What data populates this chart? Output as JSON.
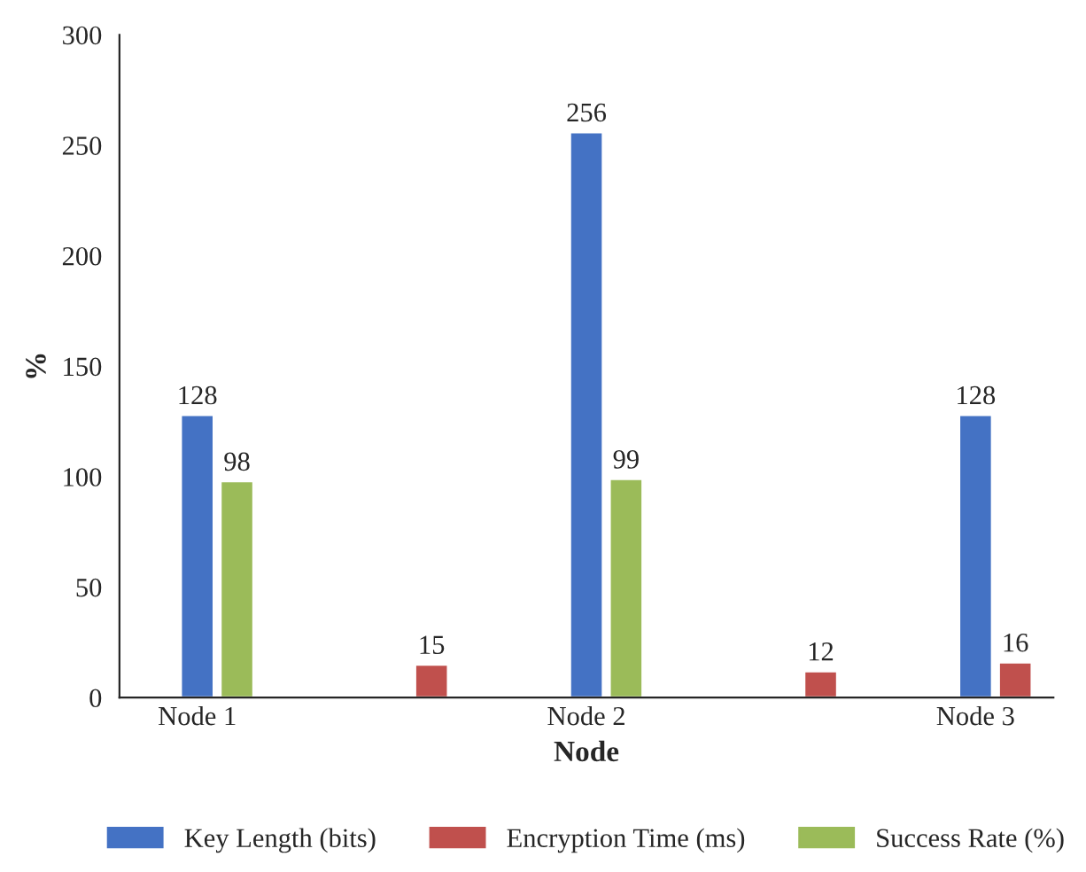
{
  "chart_data": {
    "type": "bar",
    "xlabel": "Node",
    "ylabel": "%",
    "categories": [
      "Node 1",
      null,
      "Node 2",
      null,
      "Node 3"
    ],
    "series": [
      {
        "name": "Key Length (bits)",
        "color": "#4472c4",
        "values": [
          128,
          null,
          256,
          null,
          128
        ]
      },
      {
        "name": "Encryption Time (ms)",
        "color": "#c0504d",
        "values": [
          null,
          15,
          null,
          12,
          16
        ]
      },
      {
        "name": "Success Rate (%)",
        "color": "#9bbb59",
        "values": [
          98,
          null,
          99,
          null,
          null
        ]
      }
    ],
    "ylim": [
      0,
      300
    ],
    "yticks": [
      0,
      50,
      100,
      150,
      200,
      250,
      300
    ],
    "data_labels": true,
    "legend": "bottom",
    "grid": false
  }
}
